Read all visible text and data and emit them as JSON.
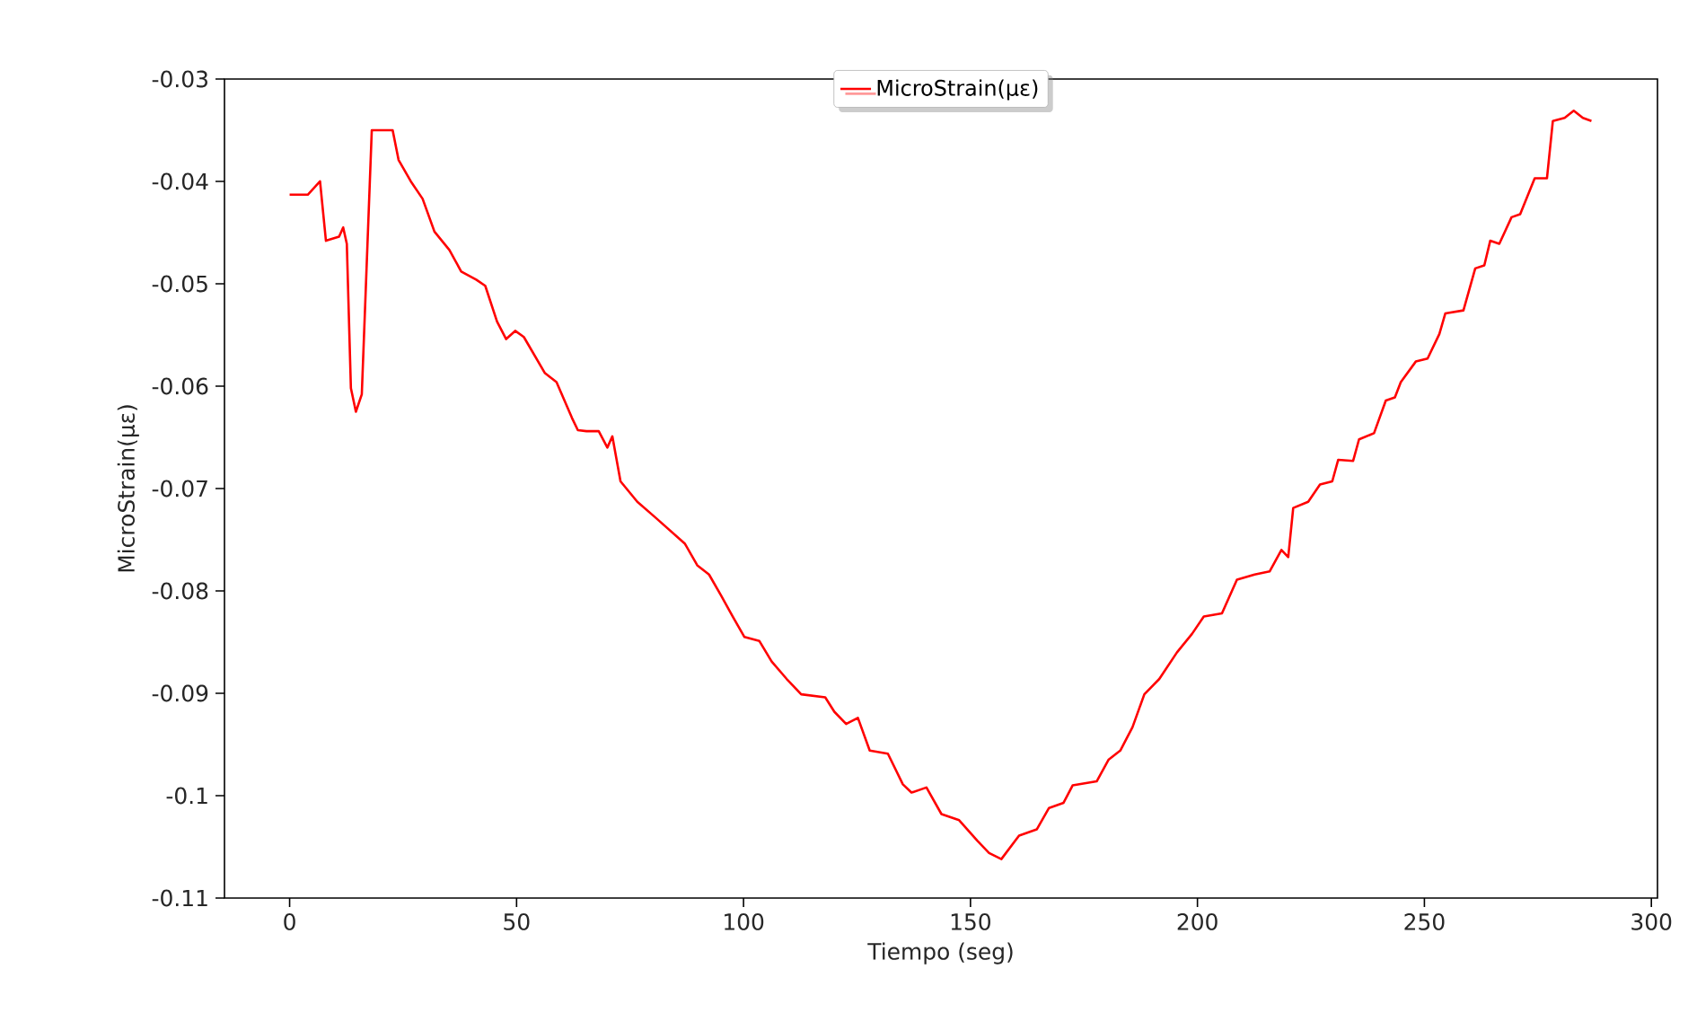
{
  "chart_data": {
    "type": "line",
    "xlabel": "Tiempo (seg)",
    "ylabel": "MicroStrain(με)",
    "xlim": [
      -14.35,
      301.35
    ],
    "ylim": [
      -0.11,
      -0.03
    ],
    "xticks": [
      0,
      50,
      100,
      150,
      200,
      250,
      300
    ],
    "yticks": [
      -0.11,
      -0.1,
      -0.09,
      -0.08,
      -0.07,
      -0.06,
      -0.05,
      -0.04,
      -0.03
    ],
    "grid": false,
    "legend": "top",
    "marker": "none",
    "line_style": "solid",
    "x": [
      0,
      4,
      6.7,
      8,
      10.9,
      11.8,
      12.6,
      13.5,
      14.6,
      15.9,
      18.1,
      22.7,
      24,
      26.7,
      29.3,
      31.9,
      35.2,
      37.8,
      41.1,
      43.1,
      45.7,
      47.7,
      49.7,
      51.6,
      56.2,
      58.8,
      62.2,
      63.5,
      65.4,
      68.1,
      70,
      71.1,
      72.9,
      76.6,
      80.5,
      87.1,
      89.8,
      92.4,
      95,
      97.6,
      100.2,
      103.5,
      106.2,
      109.5,
      112.7,
      118,
      120,
      122.6,
      125.2,
      127.8,
      131.8,
      135.1,
      137,
      140.3,
      143.6,
      147.5,
      151.5,
      154.1,
      156.8,
      160.7,
      164.6,
      167.3,
      170.5,
      172.5,
      177.8,
      180.4,
      183,
      185.7,
      188.3,
      191.6,
      195.5,
      198.8,
      201.4,
      205.4,
      208.7,
      212.6,
      215.9,
      218.5,
      220,
      221.1,
      224.4,
      227,
      229.7,
      231,
      234.3,
      235.6,
      238.9,
      241.5,
      243.5,
      244.8,
      248.1,
      250.7,
      253.3,
      254.6,
      258.6,
      261.2,
      263.2,
      264.5,
      266.5,
      269.2,
      271.1,
      274.3,
      277,
      278.3,
      280.9,
      282.9,
      284.9,
      286.8
    ],
    "series": [
      {
        "name": "MicroStrain(με)",
        "color": "#ff0000",
        "values": [
          -0.0413,
          -0.0413,
          -0.04,
          -0.0458,
          -0.0454,
          -0.0445,
          -0.0461,
          -0.0602,
          -0.0625,
          -0.0608,
          -0.035,
          -0.035,
          -0.0379,
          -0.04,
          -0.0417,
          -0.0449,
          -0.0467,
          -0.0488,
          -0.0496,
          -0.0502,
          -0.0537,
          -0.0554,
          -0.0546,
          -0.0552,
          -0.0587,
          -0.0596,
          -0.0631,
          -0.0643,
          -0.0644,
          -0.0644,
          -0.066,
          -0.0649,
          -0.0693,
          -0.0713,
          -0.0728,
          -0.0754,
          -0.0775,
          -0.0784,
          -0.0804,
          -0.0825,
          -0.0845,
          -0.0849,
          -0.0869,
          -0.0886,
          -0.0901,
          -0.0904,
          -0.0918,
          -0.093,
          -0.0924,
          -0.0956,
          -0.0959,
          -0.0989,
          -0.0997,
          -0.0992,
          -0.1018,
          -0.1024,
          -0.1044,
          -0.1056,
          -0.1062,
          -0.1039,
          -0.1033,
          -0.1012,
          -0.1007,
          -0.099,
          -0.0986,
          -0.0965,
          -0.0956,
          -0.0933,
          -0.0901,
          -0.0886,
          -0.086,
          -0.0842,
          -0.0825,
          -0.0822,
          -0.0789,
          -0.0784,
          -0.0781,
          -0.076,
          -0.0767,
          -0.0719,
          -0.0713,
          -0.0696,
          -0.0693,
          -0.0672,
          -0.0673,
          -0.0652,
          -0.0646,
          -0.0614,
          -0.0611,
          -0.0596,
          -0.0576,
          -0.0573,
          -0.0549,
          -0.0529,
          -0.0526,
          -0.0485,
          -0.0482,
          -0.0458,
          -0.0461,
          -0.0435,
          -0.0432,
          -0.0397,
          -0.0397,
          -0.0341,
          -0.0338,
          -0.0331,
          -0.0338,
          -0.0341
        ]
      }
    ]
  }
}
